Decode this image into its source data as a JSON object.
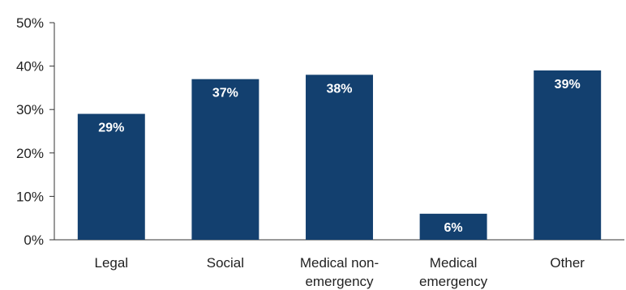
{
  "chart_data": {
    "type": "bar",
    "categories": [
      [
        "Legal"
      ],
      [
        "Social"
      ],
      [
        "Medical non-",
        "emergency"
      ],
      [
        "Medical",
        "emergency"
      ],
      [
        "Other"
      ]
    ],
    "values": [
      29,
      37,
      38,
      6,
      39
    ],
    "data_labels": [
      "29%",
      "37%",
      "38%",
      "6%",
      "39%"
    ],
    "ylim": [
      0,
      50
    ],
    "yticks": [
      0,
      10,
      20,
      30,
      40,
      50
    ],
    "ytick_labels": [
      "0%",
      "10%",
      "20%",
      "30%",
      "40%",
      "50%"
    ],
    "bar_color": "#13406f",
    "label_color": "#ffffff",
    "grid": false,
    "legend": "none"
  }
}
